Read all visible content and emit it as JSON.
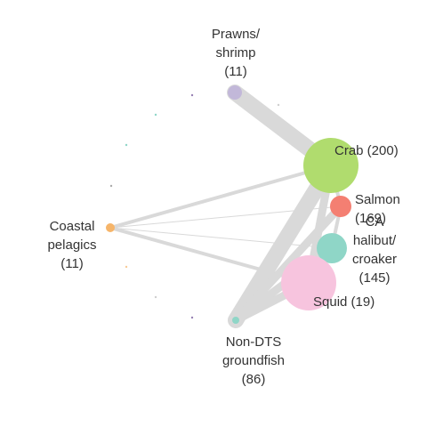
{
  "network": {
    "edge_color": "#d9d9d9",
    "nodes": [
      {
        "id": "crab",
        "label_lines": [
          "Crab (200)"
        ],
        "color": "#b0dc6e"
      },
      {
        "id": "salmon",
        "label_lines": [
          "Salmon",
          "(169)"
        ],
        "color": "#f47f72"
      },
      {
        "id": "ca_halibut",
        "label_lines": [
          "CA",
          "halibut/",
          "croaker",
          "(145)"
        ],
        "color": "#8fd6c7"
      },
      {
        "id": "squid",
        "label_lines": [
          "Squid (19)"
        ],
        "color": "#f7c4de"
      },
      {
        "id": "prawns",
        "label_lines": [
          "Prawns/",
          "shrimp",
          "(11)"
        ],
        "color": "#c2b8d9"
      },
      {
        "id": "coastal",
        "label_lines": [
          "Coastal",
          "pelagics",
          "(11)"
        ],
        "color": "#f6b56a"
      },
      {
        "id": "nondts",
        "label_lines": [
          "Non-DTS",
          "groundfish",
          "(86)"
        ],
        "color": "#8fd6c7"
      }
    ],
    "edges": [
      {
        "from": "prawns",
        "to": "crab",
        "weight": "heavy"
      },
      {
        "from": "crab",
        "to": "nondts",
        "weight": "heavy"
      },
      {
        "from": "crab",
        "to": "squid",
        "weight": "medium"
      },
      {
        "from": "crab",
        "to": "coastal",
        "weight": "light"
      },
      {
        "from": "coastal",
        "to": "squid",
        "weight": "light"
      },
      {
        "from": "coastal",
        "to": "salmon",
        "weight": "thin"
      },
      {
        "from": "coastal",
        "to": "ca_halibut",
        "weight": "thin"
      },
      {
        "from": "salmon",
        "to": "nondts",
        "weight": "medium"
      },
      {
        "from": "ca_halibut",
        "to": "nondts",
        "weight": "medium"
      },
      {
        "from": "squid",
        "to": "nondts",
        "weight": "medium"
      },
      {
        "from": "salmon",
        "to": "ca_halibut",
        "weight": "light"
      },
      {
        "from": "crab",
        "to": "salmon",
        "weight": "light"
      },
      {
        "from": "ca_halibut",
        "to": "squid",
        "weight": "light"
      }
    ]
  }
}
